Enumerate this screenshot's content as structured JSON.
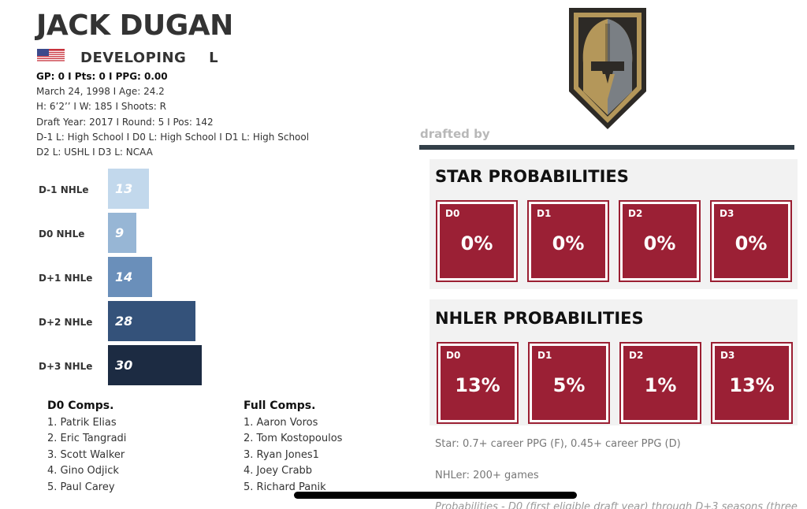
{
  "player": {
    "name": "JACK DUGAN",
    "status": "DEVELOPING",
    "position": "L",
    "stats_line": "GP: 0 I Pts: 0 I PPG: 0.00",
    "info_lines": [
      "March 24, 1998 I Age: 24.2",
      "H: 6’2’’ I W: 185 I Shoots: R",
      "Draft Year: 2017 I Round: 5 I Pos: 142",
      "D-1 L: High School I D0 L: High School I D1 L: High School",
      "D2 L: USHL I D3 L: NCAA"
    ],
    "flag_icon": "us-flag-icon"
  },
  "chart_data": {
    "type": "bar",
    "orientation": "horizontal",
    "categories": [
      "D-1 NHLe",
      "D0 NHLe",
      "D+1 NHLe",
      "D+2 NHLe",
      "D+3 NHLe"
    ],
    "values": [
      13,
      9,
      14,
      28,
      30
    ],
    "colors": [
      "#c2d8ec",
      "#97b6d5",
      "#6a8fba",
      "#34527a",
      "#1c2b42"
    ],
    "title": "",
    "xlabel": "",
    "ylabel": ""
  },
  "d0_comps": {
    "title": "D0 Comps.",
    "items": [
      "1. Patrik Elias",
      "2. Eric Tangradi",
      "3. Scott Walker",
      "4. Gino Odjick",
      "5. Paul Carey"
    ]
  },
  "full_comps": {
    "title": "Full Comps.",
    "items": [
      "1. Aaron Voros",
      "2. Tom Kostopoulos",
      "3. Ryan Jones1",
      "4. Joey Crabb",
      "5. Richard Panik"
    ]
  },
  "team": {
    "drafted_by": "drafted by",
    "logo_icon": "vegas-golden-knights-helmet-icon"
  },
  "star_probabilities": {
    "title": "STAR PROBABILITIES",
    "cards": [
      {
        "season": "D0",
        "value": "0%"
      },
      {
        "season": "D1",
        "value": "0%"
      },
      {
        "season": "D2",
        "value": "0%"
      },
      {
        "season": "D3",
        "value": "0%"
      }
    ]
  },
  "nhler_probabilities": {
    "title": "NHLER PROBABILITIES",
    "cards": [
      {
        "season": "D0",
        "value": "13%"
      },
      {
        "season": "D1",
        "value": "5%"
      },
      {
        "season": "D2",
        "value": "1%"
      },
      {
        "season": "D3",
        "value": "13%"
      }
    ]
  },
  "notes": {
    "star_def": "Star: 0.7+ career PPG (F), 0.45+ career PPG (D)",
    "nhler_def": "NHLer: 200+ games",
    "probabilities_def": "Probabilities - D0 (first eligible draft year) through D+3 seasons (three"
  },
  "colors": {
    "card_fill": "#9b2035",
    "header_text": "#333333",
    "rule": "#333f48"
  }
}
